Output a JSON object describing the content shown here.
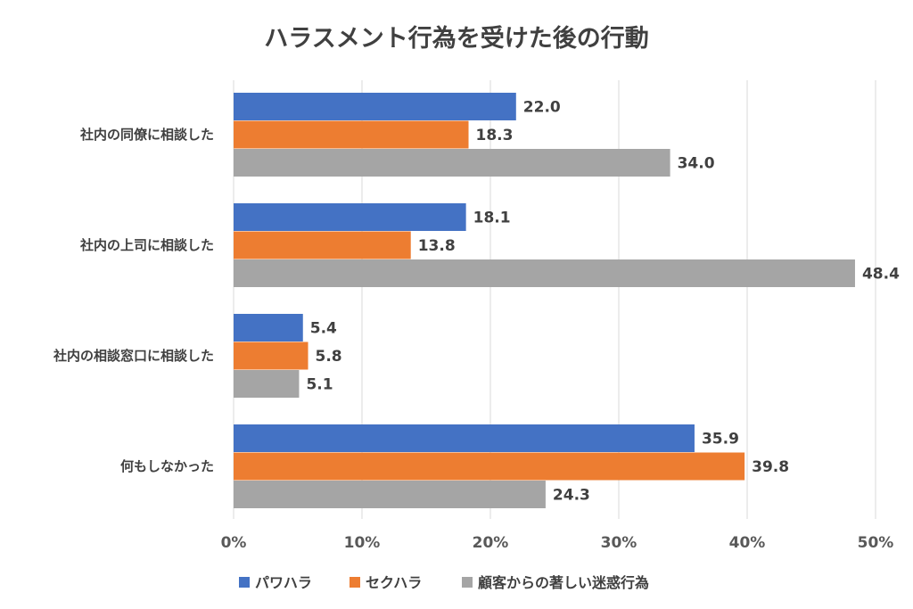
{
  "chart_data": {
    "type": "bar",
    "orientation": "horizontal",
    "title": "ハラスメント行為を受けた後の行動",
    "xlabel": "",
    "ylabel": "",
    "xlim": [
      0,
      50
    ],
    "x_ticks": [
      0,
      10,
      20,
      30,
      40,
      50
    ],
    "x_tick_labels": [
      "0%",
      "10%",
      "20%",
      "30%",
      "40%",
      "50%"
    ],
    "grid": true,
    "legend_position": "bottom",
    "categories": [
      "社内の同僚に相談した",
      "社内の上司に相談した",
      "社内の相談窓口に相談した",
      "何もしなかった"
    ],
    "series": [
      {
        "name": "パワハラ",
        "color": "#4472c4",
        "values": [
          22.0,
          18.1,
          5.4,
          35.9
        ],
        "labels": [
          "22.0",
          "18.1",
          "5.4",
          "35.9"
        ]
      },
      {
        "name": "セクハラ",
        "color": "#ed7d31",
        "values": [
          18.3,
          13.8,
          5.8,
          39.8
        ],
        "labels": [
          "18.3",
          "13.8",
          "5.8",
          "39.8"
        ]
      },
      {
        "name": "顧客からの著しい迷惑行為",
        "color": "#a5a5a5",
        "values": [
          34.0,
          48.4,
          5.1,
          24.3
        ],
        "labels": [
          "34.0",
          "48.4",
          "5.1",
          "24.3"
        ]
      }
    ]
  }
}
